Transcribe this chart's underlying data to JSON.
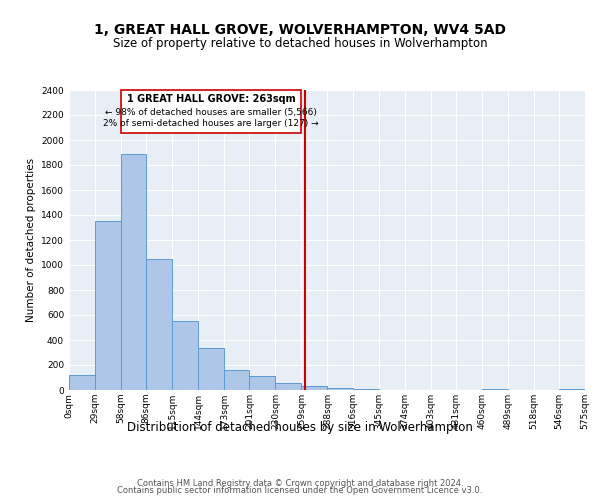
{
  "title": "1, GREAT HALL GROVE, WOLVERHAMPTON, WV4 5AD",
  "subtitle": "Size of property relative to detached houses in Wolverhampton",
  "xlabel": "Distribution of detached houses by size in Wolverhampton",
  "ylabel": "Number of detached properties",
  "bin_edges": [
    0,
    29,
    58,
    86,
    115,
    144,
    173,
    201,
    230,
    259,
    288,
    316,
    345,
    374,
    403,
    431,
    460,
    489,
    518,
    546,
    575
  ],
  "bar_heights": [
    120,
    1350,
    1890,
    1050,
    550,
    335,
    160,
    110,
    60,
    30,
    15,
    5,
    0,
    0,
    0,
    0,
    5,
    0,
    0,
    5
  ],
  "bar_color": "#aec6e8",
  "bar_edgecolor": "#5b9bd5",
  "vline_x": 263,
  "vline_color": "#cc0000",
  "annotation_title": "1 GREAT HALL GROVE: 263sqm",
  "annotation_line1": "← 98% of detached houses are smaller (5,566)",
  "annotation_line2": "2% of semi-detached houses are larger (127) →",
  "annotation_box_edgecolor": "#cc0000",
  "ylim": [
    0,
    2400
  ],
  "yticks": [
    0,
    200,
    400,
    600,
    800,
    1000,
    1200,
    1400,
    1600,
    1800,
    2000,
    2200,
    2400
  ],
  "tick_labels": [
    "0sqm",
    "29sqm",
    "58sqm",
    "86sqm",
    "115sqm",
    "144sqm",
    "173sqm",
    "201sqm",
    "230sqm",
    "259sqm",
    "288sqm",
    "316sqm",
    "345sqm",
    "374sqm",
    "403sqm",
    "431sqm",
    "460sqm",
    "489sqm",
    "518sqm",
    "546sqm",
    "575sqm"
  ],
  "footer1": "Contains HM Land Registry data © Crown copyright and database right 2024.",
  "footer2": "Contains public sector information licensed under the Open Government Licence v3.0.",
  "plot_bg_color": "#e8eef5",
  "fig_bg_color": "#ffffff",
  "grid_color": "#ffffff",
  "title_fontsize": 10,
  "subtitle_fontsize": 8.5,
  "xlabel_fontsize": 8.5,
  "ylabel_fontsize": 7.5,
  "tick_fontsize": 6.5,
  "footer_fontsize": 6.0
}
